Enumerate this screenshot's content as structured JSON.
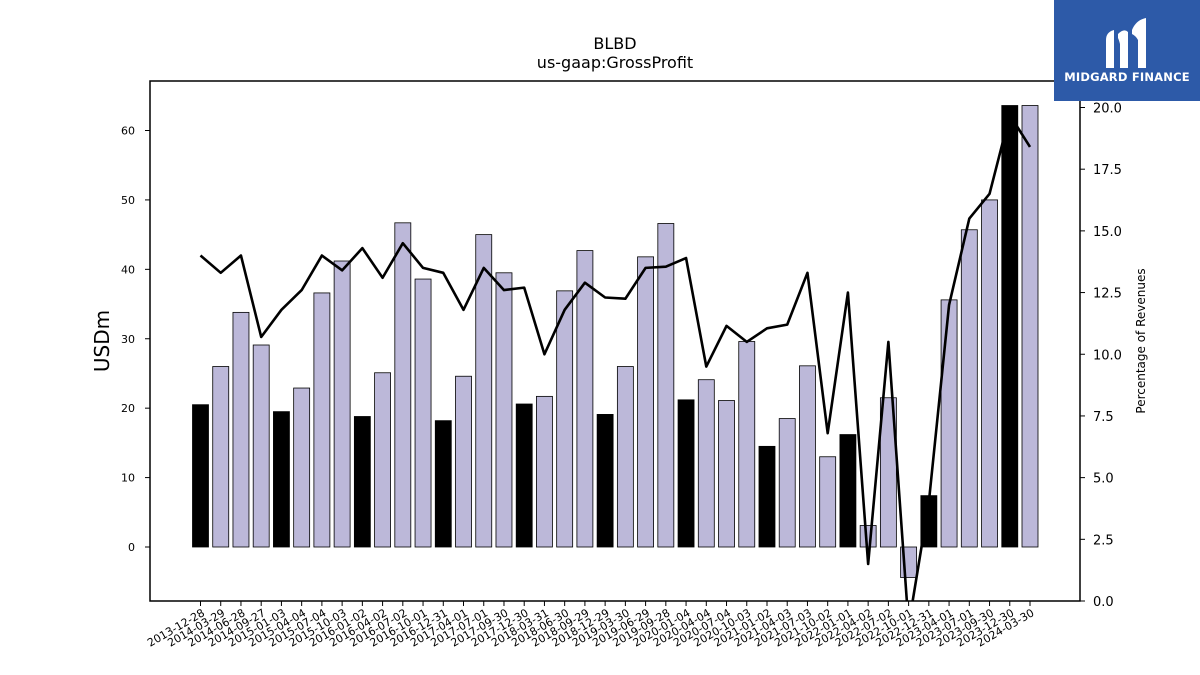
{
  "logo": {
    "text": "MIDGARD FINANCE",
    "background": "#2d5aa8",
    "icon": "midgard-logo-icon"
  },
  "chart_data": {
    "type": "bar",
    "title": "BLBD",
    "subtitle": "us-gaap:GrossProfit",
    "ylabel": "USDm",
    "y2label": "Percentage of Revenues",
    "ylim": [
      -7.8,
      67
    ],
    "y2lim": [
      0.0,
      21.0
    ],
    "yticks": [
      0,
      10,
      20,
      30,
      40,
      50,
      60
    ],
    "y2ticks": [
      "0.0",
      "2.5",
      "5.0",
      "7.5",
      "10.0",
      "12.5",
      "15.0",
      "17.5",
      "20.0"
    ],
    "grid": false,
    "colors": {
      "fiscal_q4_bar": "#000000",
      "quarter_bar": "#bcb8d9",
      "line": "#000000"
    },
    "categories": [
      "2013-12-28",
      "2014-03-29",
      "2014-06-28",
      "2014-09-27",
      "2015-01-03",
      "2015-04-04",
      "2015-07-04",
      "2015-10-03",
      "2016-01-02",
      "2016-04-02",
      "2016-07-02",
      "2016-10-01",
      "2016-12-31",
      "2017-04-01",
      "2017-07-01",
      "2017-09-30",
      "2017-12-30",
      "2018-03-31",
      "2018-06-30",
      "2018-09-29",
      "2018-12-29",
      "2019-03-30",
      "2019-06-29",
      "2019-09-28",
      "2020-01-04",
      "2020-04-04",
      "2020-07-04",
      "2020-10-03",
      "2021-01-02",
      "2021-04-03",
      "2021-07-03",
      "2021-10-02",
      "2022-01-01",
      "2022-04-02",
      "2022-07-02",
      "2022-10-01",
      "2022-12-31",
      "2023-04-01",
      "2023-07-01",
      "2023-09-30",
      "2023-12-30",
      "2024-03-30"
    ],
    "values": [
      20.5,
      26.0,
      33.8,
      29.1,
      19.5,
      22.9,
      36.6,
      41.2,
      18.8,
      25.1,
      46.7,
      38.6,
      18.2,
      24.6,
      45.0,
      39.5,
      20.6,
      21.7,
      36.9,
      42.7,
      19.1,
      26.0,
      41.8,
      46.6,
      21.2,
      24.1,
      21.1,
      29.6,
      14.5,
      18.5,
      26.1,
      13.0,
      16.2,
      3.1,
      21.5,
      -4.4,
      7.4,
      35.6,
      45.7,
      50.0,
      63.6,
      63.6
    ],
    "highlight": [
      true,
      false,
      false,
      false,
      true,
      false,
      false,
      false,
      true,
      false,
      false,
      false,
      true,
      false,
      false,
      false,
      true,
      false,
      false,
      false,
      true,
      false,
      false,
      false,
      true,
      false,
      false,
      false,
      true,
      false,
      false,
      false,
      true,
      false,
      false,
      false,
      true,
      false,
      false,
      false,
      true,
      false
    ],
    "line_values": [
      14.0,
      13.3,
      14.0,
      10.7,
      11.8,
      12.6,
      14.0,
      13.4,
      14.3,
      13.1,
      14.5,
      13.5,
      13.3,
      11.8,
      13.5,
      12.6,
      12.7,
      10.0,
      11.8,
      12.9,
      12.3,
      12.25,
      13.5,
      13.55,
      13.9,
      9.5,
      11.15,
      10.5,
      11.05,
      11.2,
      13.3,
      6.8,
      12.5,
      1.5,
      10.5,
      -1.0,
      4.0,
      12.0,
      15.5,
      16.5,
      19.7,
      18.4
    ]
  }
}
